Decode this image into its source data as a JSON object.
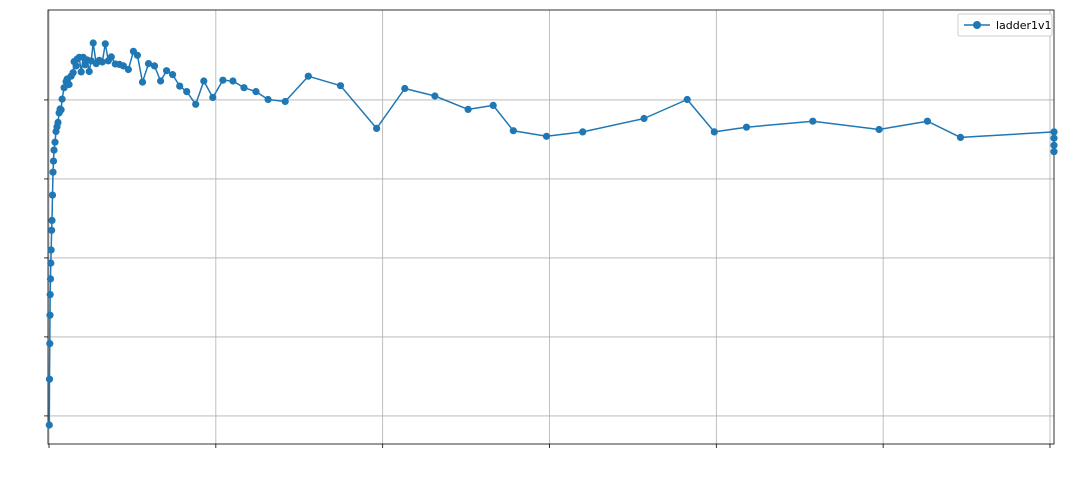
{
  "chart_data": {
    "type": "line",
    "title": "",
    "xlabel": "",
    "ylabel": "",
    "xlim": [
      -1,
      1000
    ],
    "ylim": [
      0,
      1
    ],
    "x_ticks": [
      0,
      166,
      332,
      498,
      664,
      830,
      996
    ],
    "y_ticks": [
      0.023,
      0.223,
      0.423,
      0.623,
      0.823
    ],
    "tick_labels_visible": false,
    "grid": true,
    "legend_position": "top-right",
    "colors": {
      "series": "#1f77b4",
      "grid": "#b0b0b0",
      "axes": "#000000"
    },
    "series": [
      {
        "name": "ladder1v1",
        "marker": "circle",
        "points": [
          [
            0.3,
            0.0
          ],
          [
            0.5,
            0.116
          ],
          [
            0.8,
            0.206
          ],
          [
            1.0,
            0.278
          ],
          [
            1.2,
            0.33
          ],
          [
            1.5,
            0.37
          ],
          [
            1.8,
            0.41
          ],
          [
            2.2,
            0.443
          ],
          [
            2.6,
            0.493
          ],
          [
            3.0,
            0.518
          ],
          [
            3.5,
            0.582
          ],
          [
            4.0,
            0.64
          ],
          [
            4.5,
            0.668
          ],
          [
            5,
            0.696
          ],
          [
            6,
            0.716
          ],
          [
            7,
            0.743
          ],
          [
            8,
            0.755
          ],
          [
            9,
            0.766
          ],
          [
            10,
            0.79
          ],
          [
            11,
            0.8
          ],
          [
            12,
            0.798
          ],
          [
            13,
            0.825
          ],
          [
            15,
            0.854
          ],
          [
            17,
            0.869
          ],
          [
            18,
            0.876
          ],
          [
            20,
            0.862
          ],
          [
            22,
            0.883
          ],
          [
            24,
            0.892
          ],
          [
            25,
            0.92
          ],
          [
            27,
            0.909
          ],
          [
            28,
            0.926
          ],
          [
            30,
            0.931
          ],
          [
            32,
            0.894
          ],
          [
            34,
            0.931
          ],
          [
            36,
            0.912
          ],
          [
            38,
            0.924
          ],
          [
            40,
            0.895
          ],
          [
            42,
            0.922
          ],
          [
            44,
            0.967
          ],
          [
            47,
            0.915
          ],
          [
            50,
            0.923
          ],
          [
            53,
            0.919
          ],
          [
            56,
            0.965
          ],
          [
            59,
            0.922
          ],
          [
            62,
            0.932
          ],
          [
            66,
            0.914
          ],
          [
            70,
            0.913
          ],
          [
            74,
            0.909
          ],
          [
            79,
            0.9
          ],
          [
            84,
            0.946
          ],
          [
            88,
            0.936
          ],
          [
            93,
            0.868
          ],
          [
            99,
            0.915
          ],
          [
            105,
            0.909
          ],
          [
            111,
            0.871
          ],
          [
            117,
            0.897
          ],
          [
            123,
            0.887
          ],
          [
            130,
            0.858
          ],
          [
            137,
            0.844
          ],
          [
            146,
            0.812
          ],
          [
            154,
            0.871
          ],
          [
            163,
            0.829
          ],
          [
            173,
            0.873
          ],
          [
            183,
            0.871
          ],
          [
            194,
            0.854
          ],
          [
            206,
            0.844
          ],
          [
            218,
            0.824
          ],
          [
            235,
            0.819
          ],
          [
            258,
            0.883
          ],
          [
            290,
            0.859
          ],
          [
            326,
            0.751
          ],
          [
            354,
            0.852
          ],
          [
            384,
            0.833
          ],
          [
            417,
            0.799
          ],
          [
            442,
            0.809
          ],
          [
            462,
            0.745
          ],
          [
            495,
            0.731
          ],
          [
            531,
            0.742
          ],
          [
            592,
            0.776
          ],
          [
            635,
            0.824
          ],
          [
            662,
            0.742
          ],
          [
            694,
            0.754
          ],
          [
            760,
            0.769
          ],
          [
            826,
            0.748
          ],
          [
            874,
            0.769
          ],
          [
            907,
            0.728
          ],
          [
            1000,
            0.742
          ],
          [
            1000,
            0.726
          ],
          [
            1000,
            0.692
          ],
          [
            1000,
            0.708
          ]
        ]
      }
    ]
  }
}
